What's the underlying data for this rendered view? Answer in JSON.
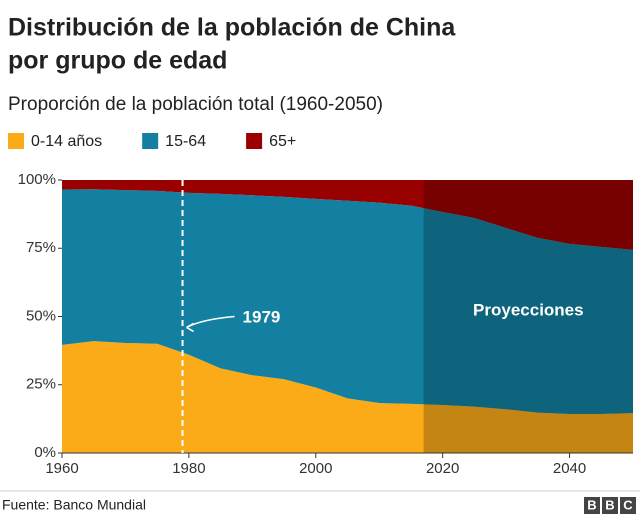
{
  "chart_data": {
    "type": "stacked-area",
    "title": [
      "Distribución de la población de China",
      "por grupo de edad"
    ],
    "subtitle": "Proporción de la población total (1960-2050)",
    "x": [
      1960,
      1965,
      1970,
      1975,
      1980,
      1985,
      1990,
      1995,
      2000,
      2005,
      2010,
      2015,
      2020,
      2025,
      2030,
      2035,
      2040,
      2045,
      2050
    ],
    "series": [
      {
        "name": "0-14 años",
        "color": "#fbab18",
        "values": [
          39.6,
          41,
          40.3,
          40,
          36,
          31,
          28.5,
          27,
          24,
          20,
          18.3,
          18,
          17.6,
          17,
          16,
          14.8,
          14.3,
          14.3,
          14.6
        ]
      },
      {
        "name": "15-64",
        "color": "#1380a1",
        "values": [
          56.9,
          55.6,
          56.0,
          56.0,
          59.3,
          63.9,
          65.9,
          66.8,
          69.1,
          72.4,
          73.4,
          72.6,
          70.7,
          69.1,
          66.4,
          64.0,
          62.3,
          61.2,
          59.8
        ]
      },
      {
        "name": "65+",
        "color": "#990000",
        "values": [
          3.5,
          3.4,
          3.7,
          4.0,
          4.7,
          5.1,
          5.6,
          6.2,
          6.9,
          7.6,
          8.3,
          9.4,
          11.7,
          13.9,
          17.6,
          21.2,
          23.4,
          24.5,
          25.6
        ]
      }
    ],
    "xlim": [
      1960,
      2050
    ],
    "xticks": [
      1960,
      1980,
      2000,
      2020,
      2040
    ],
    "ylim": [
      0,
      100
    ],
    "yticks": [
      {
        "value": 0,
        "label": "0%"
      },
      {
        "value": 25,
        "label": "25%"
      },
      {
        "value": 50,
        "label": "50%"
      },
      {
        "value": 75,
        "label": "75%"
      },
      {
        "value": 100,
        "label": "100%"
      }
    ],
    "highlight_year": 1979,
    "projection_start": 2017,
    "projection_label": "Proyecciones",
    "source": "Fuente: Banco Mundial",
    "logo": [
      "B",
      "B",
      "C"
    ]
  }
}
